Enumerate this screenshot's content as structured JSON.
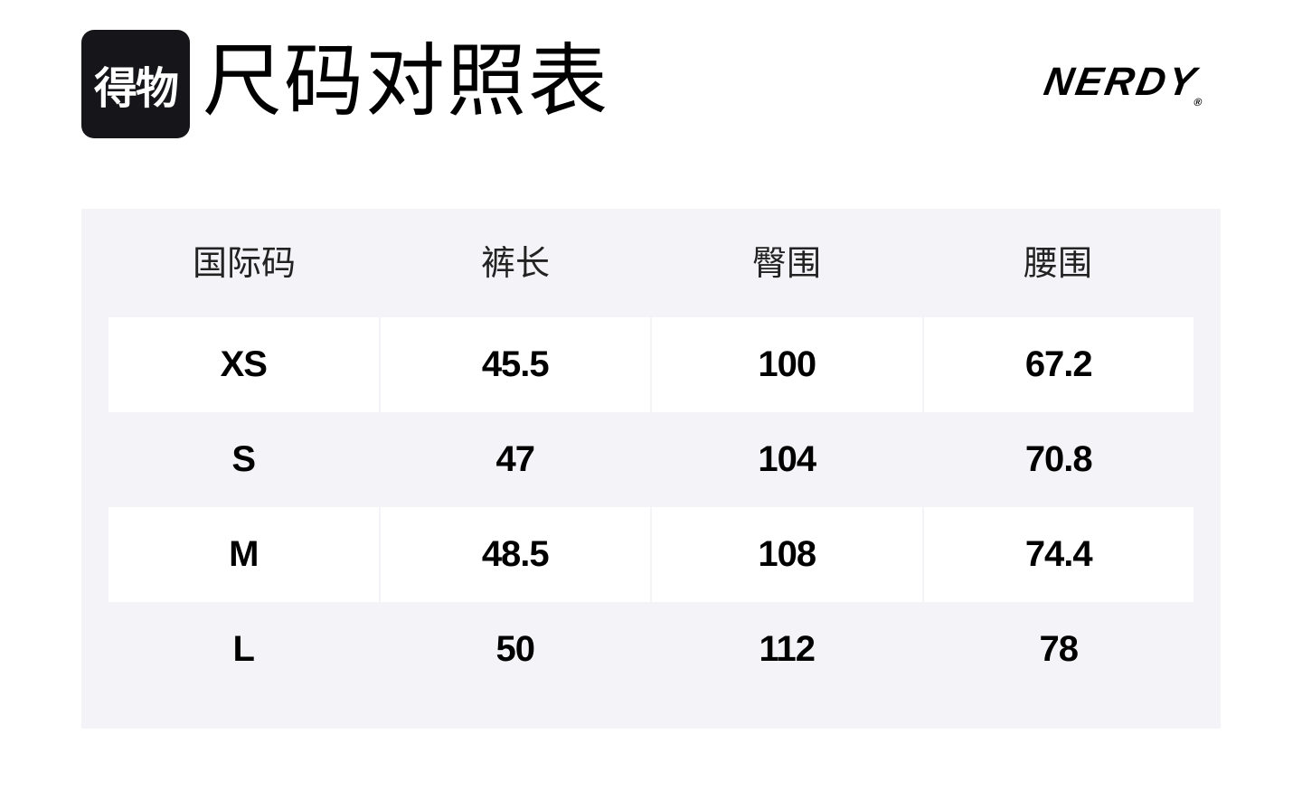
{
  "header": {
    "logo_text": "得物",
    "title": "尺码对照表",
    "brand": "NERDY",
    "brand_mark": "®"
  },
  "table": {
    "columns": [
      "国际码",
      "裤长",
      "臀围",
      "腰围"
    ],
    "rows": [
      [
        "XS",
        "45.5",
        "100",
        "67.2"
      ],
      [
        "S",
        "47",
        "104",
        "70.8"
      ],
      [
        "M",
        "48.5",
        "108",
        "74.4"
      ],
      [
        "L",
        "50",
        "112",
        "78"
      ]
    ]
  },
  "colors": {
    "panel": "#f4f4f8",
    "logo_bg": "#16161a"
  }
}
